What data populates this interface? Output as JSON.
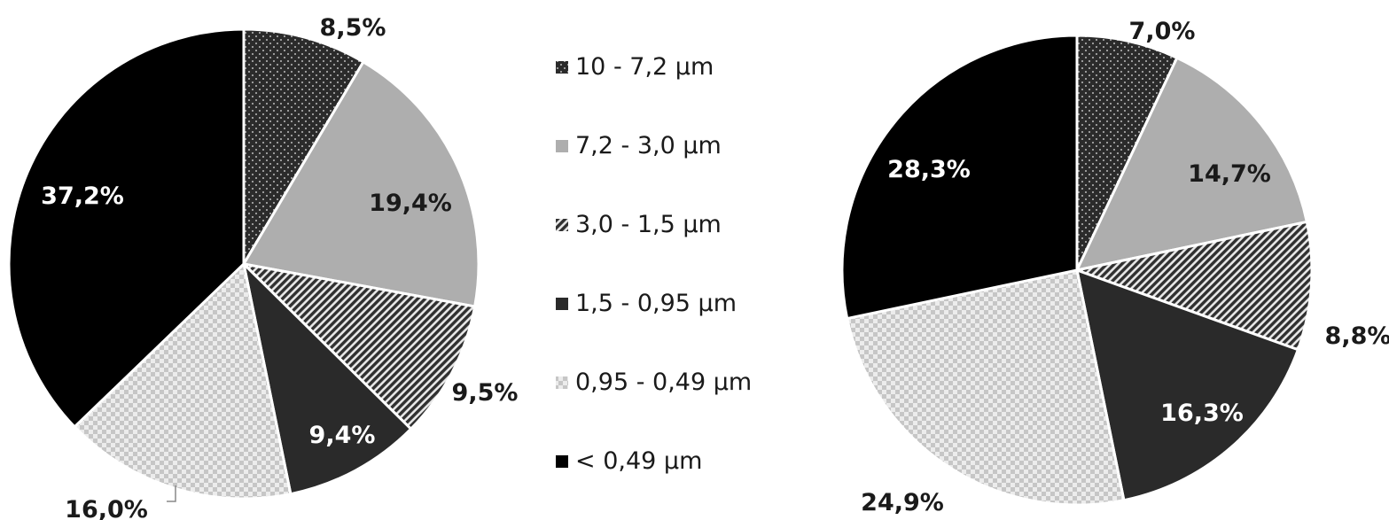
{
  "legend": {
    "items": [
      {
        "label": "10 - 7,2 µm",
        "pattern": "checker-dark"
      },
      {
        "label": "7,2 - 3,0 µm",
        "pattern": "solid-light-gray"
      },
      {
        "label": "3,0 - 1,5 µm",
        "pattern": "diagonal-hatch"
      },
      {
        "label": "1,5 - 0,95 µm",
        "pattern": "solid-dark"
      },
      {
        "label": "0,95 - 0,49 µm",
        "pattern": "checker-light"
      },
      {
        "label": "< 0,49 µm",
        "pattern": "solid-black"
      }
    ]
  },
  "colors": {
    "checker_dark": "#2b2b2b",
    "light_gray": "#aeaeae",
    "hatch": "#3a3a3a",
    "dark": "#2a2a2a",
    "checker_light": "#d6d6d6",
    "black": "#000000"
  },
  "chart_data": [
    {
      "type": "pie",
      "categories": [
        "10 - 7,2 µm",
        "7,2 - 3,0 µm",
        "3,0 - 1,5 µm",
        "1,5 - 0,95 µm",
        "0,95 - 0,49 µm",
        "< 0,49 µm"
      ],
      "values": [
        8.5,
        19.4,
        9.5,
        9.4,
        16.0,
        37.2
      ],
      "labels": [
        "8,5%",
        "19,4%",
        "9,5%",
        "9,4%",
        "16,0%",
        "37,2%"
      ],
      "title": "",
      "legend_placement": "center"
    },
    {
      "type": "pie",
      "categories": [
        "10 - 7,2 µm",
        "7,2 - 3,0 µm",
        "3,0 - 1,5 µm",
        "1,5 - 0,95 µm",
        "0,95 - 0,49 µm",
        "< 0,49 µm"
      ],
      "values": [
        7.0,
        14.7,
        8.8,
        16.3,
        24.9,
        28.3
      ],
      "labels": [
        "7,0%",
        "14,7%",
        "8,8%",
        "16,3%",
        "24,9%",
        "28,3%"
      ],
      "title": "",
      "legend_placement": "center"
    }
  ]
}
